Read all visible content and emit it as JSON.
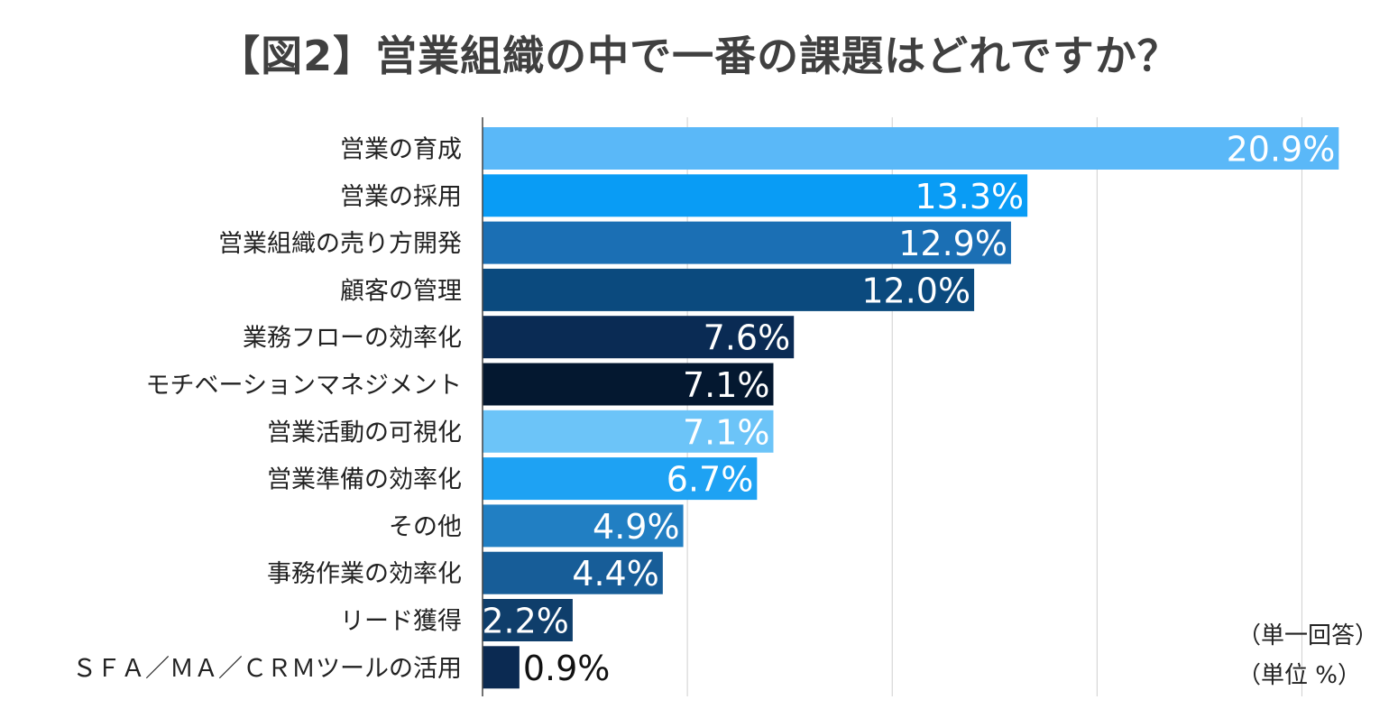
{
  "chart_data": {
    "type": "bar",
    "orientation": "horizontal",
    "title": "【図2】営業組織の中で一番の課題はどれですか？",
    "categories": [
      "営業の育成",
      "営業の採用",
      "営業組織の売り方開発",
      "顧客の管理",
      "業務フローの効率化",
      "モチベーションマネジメント",
      "営業活動の可視化",
      "営業準備の効率化",
      "その他",
      "事務作業の効率化",
      "リード獲得",
      "ＳＦＡ／ＭＡ／ＣＲＭツールの活用"
    ],
    "values": [
      20.9,
      13.3,
      12.9,
      12.0,
      7.6,
      7.1,
      7.1,
      6.7,
      4.9,
      4.4,
      2.2,
      0.9
    ],
    "value_labels": [
      "20.9%",
      "13.3%",
      "12.9%",
      "12.0%",
      "7.6%",
      "7.1%",
      "7.1%",
      "6.7%",
      "4.9%",
      "4.4%",
      "2.2%",
      "0.9%"
    ],
    "bar_colors": [
      "#5ab8f8",
      "#099cf5",
      "#1b6fb4",
      "#0b4a7e",
      "#0a2b54",
      "#041830",
      "#6cc4f8",
      "#1ea2f3",
      "#217fc3",
      "#175d98",
      "#0f3e6b",
      "#0b2a52"
    ],
    "xlim": [
      0,
      22.5
    ],
    "xgrid_step": 5,
    "grid": true,
    "xlabel": "",
    "ylabel": ""
  },
  "notes": {
    "line1": "（単一回答）",
    "line2": "（単位 %）"
  }
}
